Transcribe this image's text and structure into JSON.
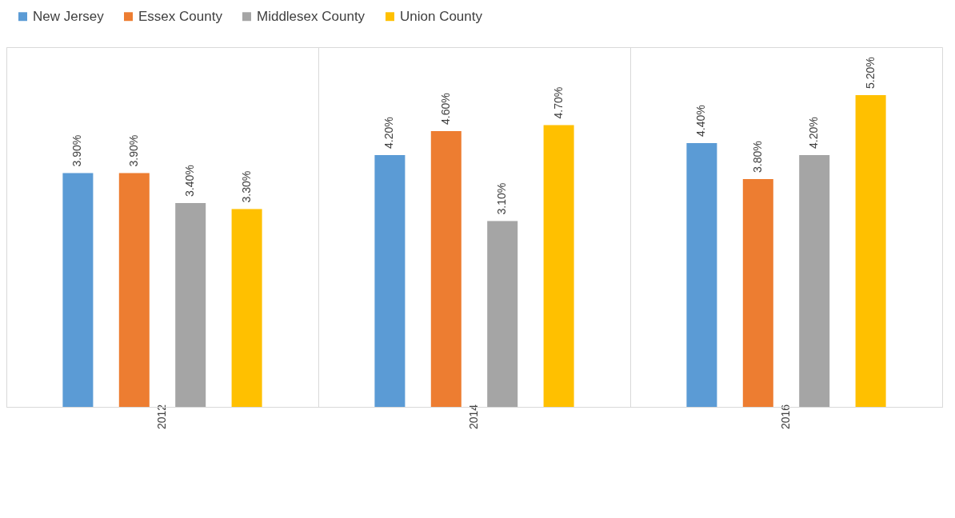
{
  "chart_data": {
    "type": "bar",
    "categories": [
      "2012",
      "2014",
      "2016"
    ],
    "series": [
      {
        "name": "New Jersey",
        "color": "#5b9bd5",
        "values": [
          3.9,
          4.2,
          4.4
        ],
        "value_labels": [
          "3.90%",
          "4.20%",
          "4.40%"
        ]
      },
      {
        "name": "Essex County",
        "color": "#ed7d31",
        "values": [
          3.9,
          4.6,
          3.8
        ],
        "value_labels": [
          "3.90%",
          "4.60%",
          "3.80%"
        ]
      },
      {
        "name": "Middlesex County",
        "color": "#a5a5a5",
        "values": [
          3.4,
          3.1,
          4.2
        ],
        "value_labels": [
          "3.40%",
          "3.10%",
          "4.20%"
        ]
      },
      {
        "name": "Union County",
        "color": "#ffc000",
        "values": [
          3.3,
          4.7,
          5.2
        ],
        "value_labels": [
          "3.30%",
          "4.70%",
          "5.20%"
        ]
      }
    ],
    "ylim": [
      0,
      6
    ],
    "grid": "x",
    "legend": "top",
    "tick_labels": "x"
  }
}
